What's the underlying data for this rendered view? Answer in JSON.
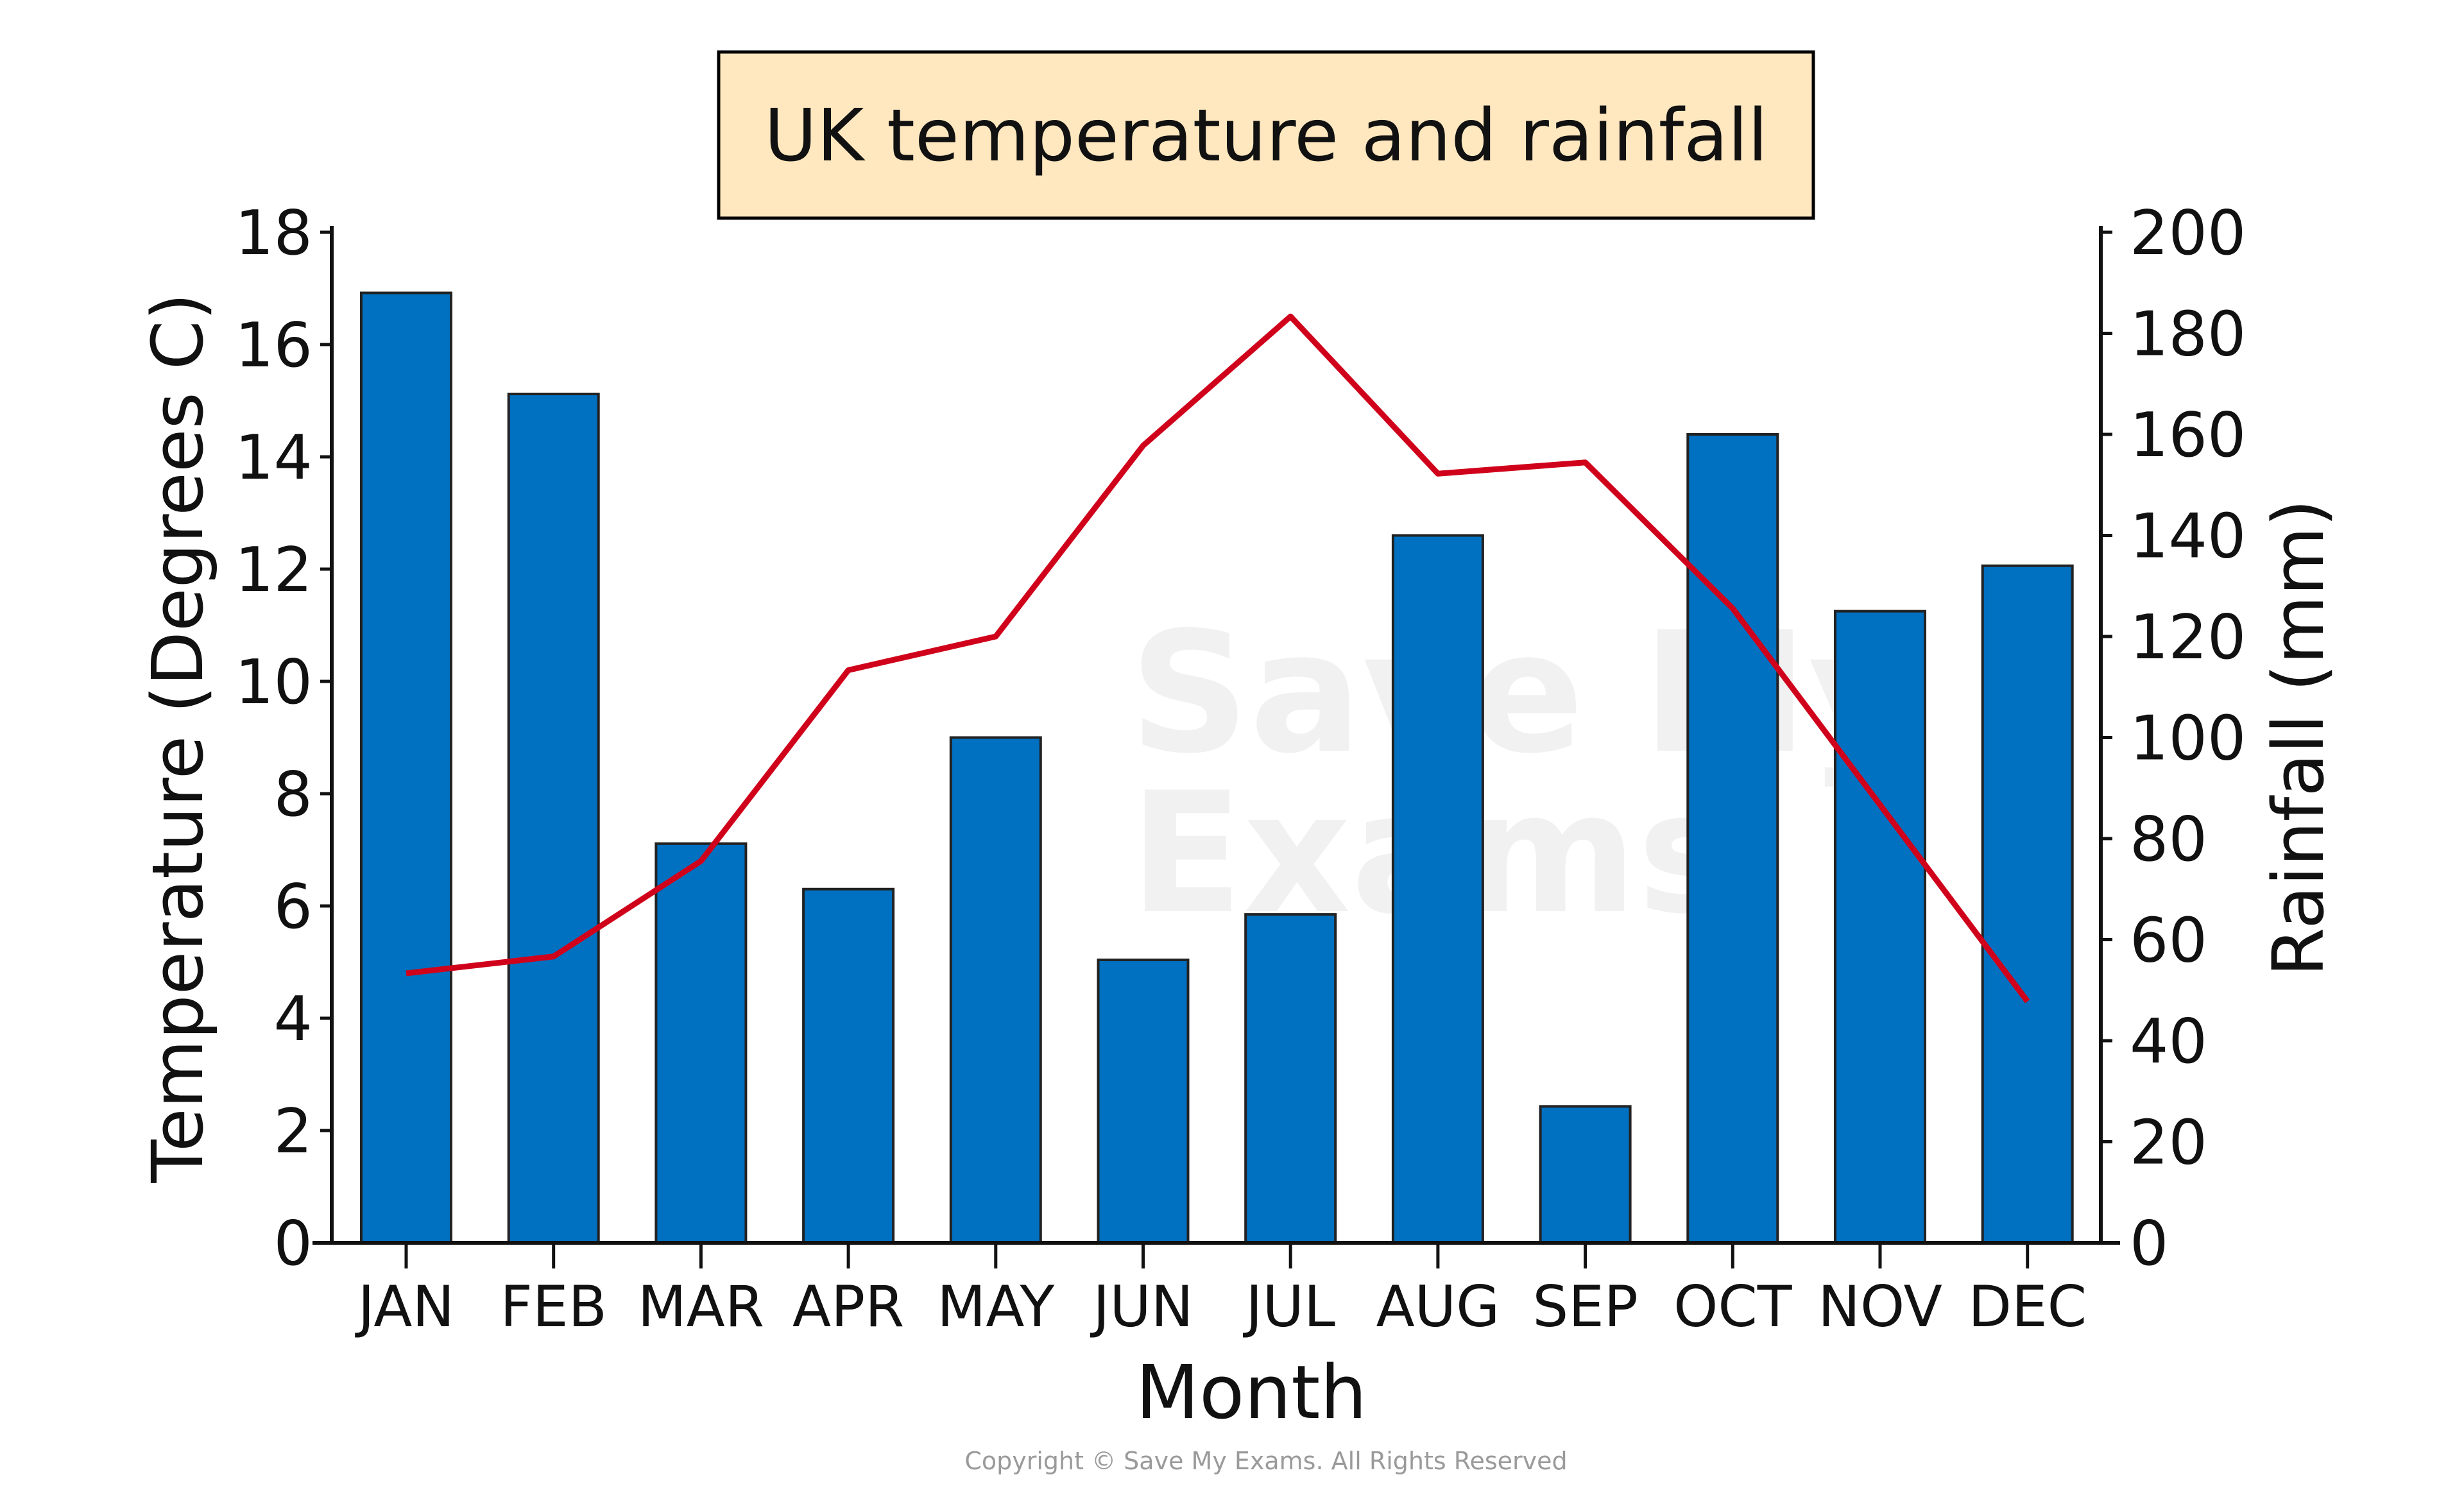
{
  "chart_data": {
    "type": "bar+line",
    "title": "UK temperature and rainfall",
    "xlabel": "Month",
    "ylabel_left": "Temperature (Degrees C)",
    "ylabel_right": "Rainfall (mm)",
    "categories": [
      "JAN",
      "FEB",
      "MAR",
      "APR",
      "MAY",
      "JUN",
      "JUL",
      "AUG",
      "SEP",
      "OCT",
      "NOV",
      "DEC"
    ],
    "ylim_left": [
      0,
      18
    ],
    "yticks_left": [
      0,
      2,
      4,
      6,
      8,
      10,
      12,
      14,
      16,
      18
    ],
    "ylim_right": [
      0,
      200
    ],
    "yticks_right": [
      0,
      20,
      40,
      60,
      80,
      100,
      120,
      140,
      160,
      180,
      200
    ],
    "grid": false,
    "series": [
      {
        "type": "bar",
        "axis": "right",
        "color": "#0070C0",
        "values": [
          188,
          168,
          79,
          70,
          100,
          56,
          65,
          140,
          27,
          160,
          125,
          134
        ]
      },
      {
        "type": "line",
        "axis": "left",
        "color": "#D0021B",
        "values": [
          4.8,
          5.1,
          6.8,
          10.2,
          10.8,
          14.2,
          16.5,
          13.7,
          13.9,
          11.3,
          7.8,
          4.3
        ]
      }
    ],
    "title_box_color": "#FFE8BF"
  },
  "footer": {
    "copyright": "Copyright © Save My Exams. All Rights Reserved"
  },
  "watermark": "Save My Exams"
}
